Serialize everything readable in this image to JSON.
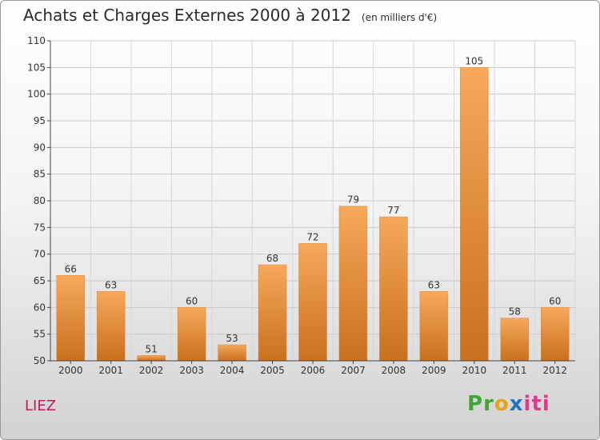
{
  "chart_data": {
    "type": "bar",
    "title": "Achats et Charges Externes 2000 à 2012",
    "subtitle": "(en milliers d'€)",
    "categories": [
      "2000",
      "2001",
      "2002",
      "2003",
      "2004",
      "2005",
      "2006",
      "2007",
      "2008",
      "2009",
      "2010",
      "2011",
      "2012"
    ],
    "values": [
      66,
      63,
      51,
      60,
      53,
      68,
      72,
      79,
      77,
      63,
      105,
      58,
      60
    ],
    "ylim": [
      50,
      110
    ],
    "yticks": [
      50,
      55,
      60,
      65,
      70,
      75,
      80,
      85,
      90,
      95,
      100,
      105,
      110
    ],
    "grid": true,
    "bar_color_top": "#f7a85a",
    "bar_color_bottom": "#c8701e"
  },
  "place_label": "LIEZ",
  "logo": {
    "letters": [
      "P",
      "r",
      "o",
      "x",
      "i",
      "t",
      "i"
    ],
    "colors": [
      "#3fa535",
      "#3fa535",
      "#e8a317",
      "#1e73be",
      "#e03a8c",
      "#e03a8c",
      "#e03a8c"
    ]
  }
}
